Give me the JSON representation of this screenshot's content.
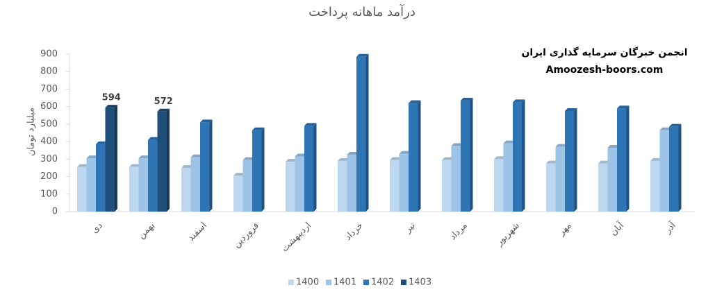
{
  "chart_data": {
    "type": "bar3d",
    "title": "درآمد ماهانه پرداخت",
    "y_label": "میلیارد تومان",
    "annotations": [
      "انجمن خبرگان سرمایه گذاری ایران",
      "Amoozesh-boors.com"
    ],
    "categories": [
      "دی",
      "بهمن",
      "اسفند",
      "فروردین",
      "اردیبهشت",
      "خرداد",
      "تیر",
      "مرداد",
      "شهریور",
      "مهر",
      "آبان",
      "آذر"
    ],
    "series": [
      {
        "name": "1400",
        "color": "#bdd7ee",
        "values": [
          255,
          255,
          250,
          205,
          285,
          290,
          295,
          295,
          300,
          275,
          275,
          290
        ]
      },
      {
        "name": "1401",
        "color": "#9dc3e6",
        "values": [
          305,
          305,
          310,
          295,
          315,
          325,
          330,
          375,
          390,
          370,
          365,
          465
        ]
      },
      {
        "name": "1402",
        "color": "#2e75b6",
        "values": [
          385,
          410,
          510,
          465,
          490,
          885,
          620,
          635,
          625,
          575,
          590,
          485
        ]
      },
      {
        "name": "1403",
        "color": "#1f4e79",
        "values": [
          594,
          572,
          null,
          null,
          null,
          null,
          null,
          null,
          null,
          null,
          null,
          null
        ],
        "labels": true
      }
    ],
    "ylim": [
      0,
      900
    ],
    "yticks": [
      0,
      100,
      200,
      300,
      400,
      500,
      600,
      700,
      800,
      900
    ],
    "grid": false,
    "legend": "bottom"
  }
}
